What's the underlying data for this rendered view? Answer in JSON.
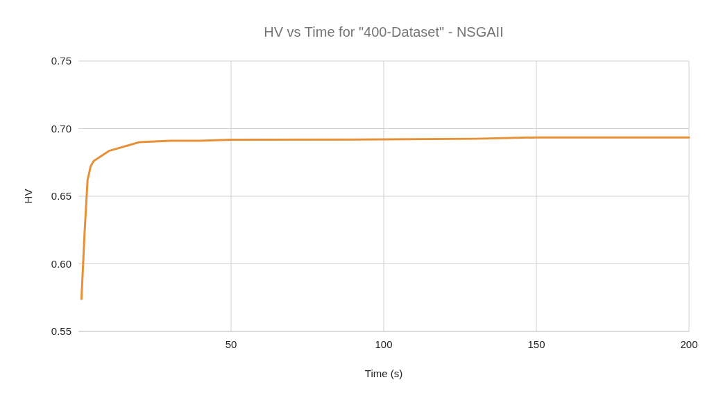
{
  "chart_data": {
    "type": "line",
    "title": "HV vs Time for \"400-Dataset\" - NSGAII",
    "xlabel": "Time (s)",
    "ylabel": "HV",
    "x": [
      1,
      2,
      3,
      4,
      5,
      10,
      20,
      30,
      40,
      50,
      100,
      130,
      150,
      200
    ],
    "series": [
      {
        "color": "#e69138",
        "values": [
          0.574,
          0.622,
          0.662,
          0.672,
          0.676,
          0.6835,
          0.69,
          0.691,
          0.691,
          0.6918,
          0.692,
          0.6925,
          0.6935,
          0.6935
        ]
      }
    ],
    "xlim": [
      0,
      200
    ],
    "xticks": [
      50,
      100,
      150,
      200
    ],
    "ylim": [
      0.55,
      0.75
    ],
    "yticks": [
      0.55,
      {
        "value": 0.6,
        "label": "0.60"
      },
      0.65,
      {
        "value": 0.7,
        "label": "0.70"
      },
      0.75
    ],
    "grid": true,
    "marker": "none",
    "line_style": "solid"
  }
}
